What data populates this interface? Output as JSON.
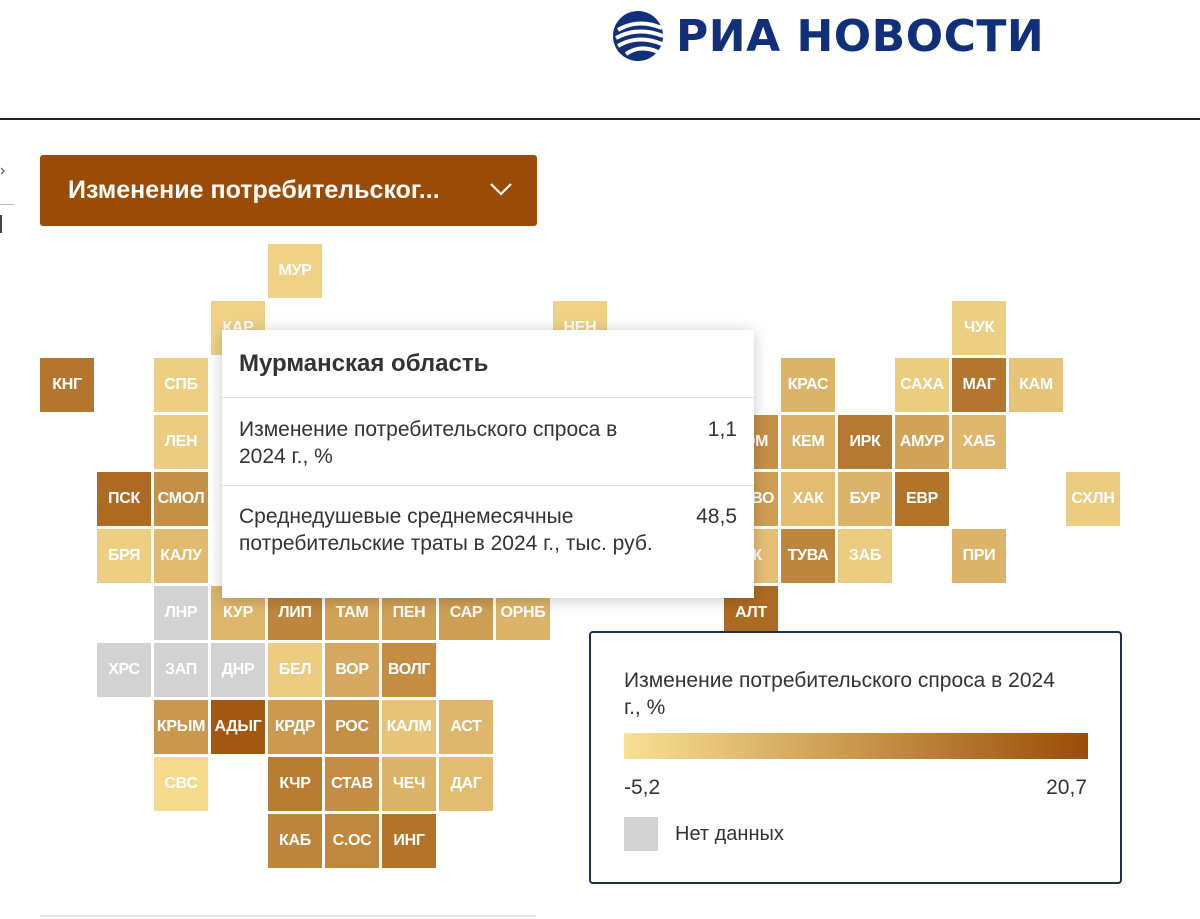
{
  "header": {
    "logo_text": "РИА НОВОСТИ",
    "logo_icon": "globe-icon",
    "brand_color": "#12307a"
  },
  "selector": {
    "label": "Изменение потребительског...",
    "icon": "chevron-down-icon",
    "bg_color": "#9a4c06"
  },
  "tooltip": {
    "region": "Мурманская область",
    "rows": [
      {
        "label": "Изменение потребительского спроса в 2024 г., %",
        "value": "1,1"
      },
      {
        "label": "Среднедушевые среднемесячные потребительские траты в 2024 г., тыс. руб.",
        "value": "48,5"
      }
    ]
  },
  "legend": {
    "title": "Изменение потребительского спроса в 2024 г., %",
    "min_label": "-5,2",
    "max_label": "20,7",
    "no_data_label": "Нет данных",
    "color_low": "#f8e194",
    "color_high": "#9a4c06",
    "no_data_color": "#d2d2d2"
  },
  "chart_data": {
    "type": "heatmap",
    "subtype": "tile-grid map",
    "metric": "Изменение потребительского спроса в 2024 г., %",
    "scale_range": [
      -5.2,
      20.7
    ],
    "tiles": [
      {
        "label": "МУР",
        "col": 4,
        "row": 0,
        "intensity": 0.1
      },
      {
        "label": "КАР",
        "col": 3,
        "row": 1,
        "intensity": 0.1
      },
      {
        "label": "НЕН",
        "col": 9,
        "row": 1,
        "intensity": 0.1
      },
      {
        "label": "ЧУК",
        "col": 16,
        "row": 1,
        "intensity": 0.12
      },
      {
        "label": "КНГ",
        "col": 0,
        "row": 2,
        "intensity": 0.72
      },
      {
        "label": "СПБ",
        "col": 2,
        "row": 2,
        "intensity": 0.12
      },
      {
        "label": "КРАС",
        "col": 13,
        "row": 2,
        "intensity": 0.3
      },
      {
        "label": "САХА",
        "col": 15,
        "row": 2,
        "intensity": 0.14
      },
      {
        "label": "МАГ",
        "col": 16,
        "row": 2,
        "intensity": 0.72
      },
      {
        "label": "КАМ",
        "col": 17,
        "row": 2,
        "intensity": 0.2
      },
      {
        "label": "ЛЕН",
        "col": 2,
        "row": 3,
        "intensity": 0.14
      },
      {
        "label": "ТОМ",
        "col": 12,
        "row": 3,
        "intensity": 0.55
      },
      {
        "label": "КЕМ",
        "col": 13,
        "row": 3,
        "intensity": 0.32
      },
      {
        "label": "ИРК",
        "col": 14,
        "row": 3,
        "intensity": 0.7
      },
      {
        "label": "АМУР",
        "col": 15,
        "row": 3,
        "intensity": 0.42
      },
      {
        "label": "ХАБ",
        "col": 16,
        "row": 3,
        "intensity": 0.28
      },
      {
        "label": "ПСК",
        "col": 1,
        "row": 4,
        "intensity": 0.8
      },
      {
        "label": "СМОЛ",
        "col": 2,
        "row": 4,
        "intensity": 0.55
      },
      {
        "label": "НОВО",
        "col": 12,
        "row": 4,
        "intensity": 0.45
      },
      {
        "label": "ХАК",
        "col": 13,
        "row": 4,
        "intensity": 0.25
      },
      {
        "label": "БУР",
        "col": 14,
        "row": 4,
        "intensity": 0.3
      },
      {
        "label": "ЕВР",
        "col": 15,
        "row": 4,
        "intensity": 0.74
      },
      {
        "label": "СХЛН",
        "col": 18,
        "row": 4,
        "intensity": 0.14
      },
      {
        "label": "БРЯ",
        "col": 1,
        "row": 5,
        "intensity": 0.12
      },
      {
        "label": "КАЛУ",
        "col": 2,
        "row": 5,
        "intensity": 0.26
      },
      {
        "label": "Р.К",
        "col": 12,
        "row": 5,
        "intensity": 0.22
      },
      {
        "label": "ТУВА",
        "col": 13,
        "row": 5,
        "intensity": 0.62
      },
      {
        "label": "ЗАБ",
        "col": 14,
        "row": 5,
        "intensity": 0.15
      },
      {
        "label": "ПРИ",
        "col": 16,
        "row": 5,
        "intensity": 0.3
      },
      {
        "label": "ЛНР",
        "col": 2,
        "row": 6,
        "intensity": null
      },
      {
        "label": "КУР",
        "col": 3,
        "row": 6,
        "intensity": 0.28
      },
      {
        "label": "ЛИП",
        "col": 4,
        "row": 6,
        "intensity": 0.62
      },
      {
        "label": "ТАМ",
        "col": 5,
        "row": 6,
        "intensity": 0.42
      },
      {
        "label": "ПЕН",
        "col": 6,
        "row": 6,
        "intensity": 0.44
      },
      {
        "label": "САР",
        "col": 7,
        "row": 6,
        "intensity": 0.45
      },
      {
        "label": "ОРНБ",
        "col": 8,
        "row": 6,
        "intensity": 0.3
      },
      {
        "label": "АЛТ",
        "col": 12,
        "row": 6,
        "intensity": 0.8
      },
      {
        "label": "ХРС",
        "col": 1,
        "row": 7,
        "intensity": null
      },
      {
        "label": "ЗАП",
        "col": 2,
        "row": 7,
        "intensity": null
      },
      {
        "label": "ДНР",
        "col": 3,
        "row": 7,
        "intensity": null
      },
      {
        "label": "БЕЛ",
        "col": 4,
        "row": 7,
        "intensity": 0.14
      },
      {
        "label": "ВОР",
        "col": 5,
        "row": 7,
        "intensity": 0.38
      },
      {
        "label": "ВОЛГ",
        "col": 6,
        "row": 7,
        "intensity": 0.56
      },
      {
        "label": "КРЫМ",
        "col": 2,
        "row": 8,
        "intensity": 0.5
      },
      {
        "label": "АДЫГ",
        "col": 3,
        "row": 8,
        "intensity": 0.92
      },
      {
        "label": "КРДР",
        "col": 4,
        "row": 8,
        "intensity": 0.48
      },
      {
        "label": "РОС",
        "col": 5,
        "row": 8,
        "intensity": 0.55
      },
      {
        "label": "КАЛМ",
        "col": 6,
        "row": 8,
        "intensity": 0.2
      },
      {
        "label": "АСТ",
        "col": 7,
        "row": 8,
        "intensity": 0.28
      },
      {
        "label": "СВС",
        "col": 2,
        "row": 9,
        "intensity": 0.04
      },
      {
        "label": "КЧР",
        "col": 4,
        "row": 9,
        "intensity": 0.68
      },
      {
        "label": "СТАВ",
        "col": 5,
        "row": 9,
        "intensity": 0.56
      },
      {
        "label": "ЧЕЧ",
        "col": 6,
        "row": 9,
        "intensity": 0.3
      },
      {
        "label": "ДАГ",
        "col": 7,
        "row": 9,
        "intensity": 0.24
      },
      {
        "label": "КАБ",
        "col": 4,
        "row": 10,
        "intensity": 0.62
      },
      {
        "label": "С.ОС",
        "col": 5,
        "row": 10,
        "intensity": 0.6
      },
      {
        "label": "ИНГ",
        "col": 6,
        "row": 10,
        "intensity": 0.74
      }
    ]
  }
}
